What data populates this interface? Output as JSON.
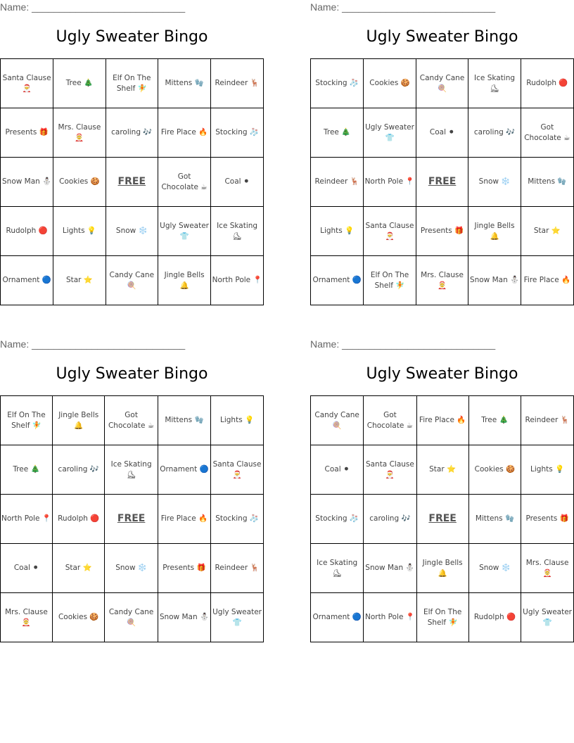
{
  "cards": [
    {
      "name_label": "Name: ____________________________",
      "title": "Ugly Sweater Bingo",
      "rows": [
        [
          "Santa Clause 🎅",
          "Tree 🎄",
          "Elf On The Shelf 🧚",
          "Mittens 🧤",
          "Reindeer 🦌"
        ],
        [
          "Presents 🎁",
          "Mrs. Clause 🤶",
          "caroling 🎶",
          "Fire Place 🔥",
          "Stocking 🧦"
        ],
        [
          "Snow Man ⛄",
          "Cookies 🍪",
          "FREE",
          "Got Chocolate ☕",
          "Coal ⚫"
        ],
        [
          "Rudolph 🔴",
          "Lights 💡",
          "Snow ❄️",
          "Ugly Sweater 👕",
          "Ice Skating ⛸"
        ],
        [
          "Ornament 🔵",
          "Star ⭐",
          "Candy Cane 🍭",
          "Jingle Bells 🔔",
          "North Pole 📍"
        ]
      ]
    },
    {
      "name_label": "Name: ____________________________",
      "title": "Ugly Sweater Bingo",
      "rows": [
        [
          "Stocking 🧦",
          "Cookies 🍪",
          "Candy Cane 🍭",
          "Ice Skating ⛸",
          "Rudolph 🔴"
        ],
        [
          "Tree 🎄",
          "Ugly Sweater 👕",
          "Coal ⚫",
          "caroling 🎶",
          "Got Chocolate ☕"
        ],
        [
          "Reindeer 🦌",
          "North Pole 📍",
          "FREE",
          "Snow ❄️",
          "Mittens 🧤"
        ],
        [
          "Lights 💡",
          "Santa Clause 🎅",
          "Presents 🎁",
          "Jingle Bells 🔔",
          "Star ⭐"
        ],
        [
          "Ornament 🔵",
          "Elf On The Shelf 🧚",
          "Mrs. Clause 🤶",
          "Snow Man ⛄",
          "Fire Place 🔥"
        ]
      ]
    },
    {
      "name_label": "Name: ____________________________",
      "title": "Ugly Sweater Bingo",
      "rows": [
        [
          "Elf On The Shelf 🧚",
          "Jingle Bells 🔔",
          "Got Chocolate ☕",
          "Mittens 🧤",
          "Lights 💡"
        ],
        [
          "Tree 🎄",
          "caroling 🎶",
          "Ice Skating ⛸",
          "Ornament 🔵",
          "Santa Clause 🎅"
        ],
        [
          "North Pole 📍",
          "Rudolph 🔴",
          "FREE",
          "Fire Place 🔥",
          "Stocking 🧦"
        ],
        [
          "Coal ⚫",
          "Star ⭐",
          "Snow ❄️",
          "Presents 🎁",
          "Reindeer 🦌"
        ],
        [
          "Mrs. Clause 🤶",
          "Cookies 🍪",
          "Candy Cane 🍭",
          "Snow Man ⛄",
          "Ugly Sweater 👕"
        ]
      ]
    },
    {
      "name_label": "Name: ____________________________",
      "title": "Ugly Sweater Bingo",
      "rows": [
        [
          "Candy Cane 🍭",
          "Got Chocolate ☕",
          "Fire Place 🔥",
          "Tree 🎄",
          "Reindeer 🦌"
        ],
        [
          "Coal ⚫",
          "Santa Clause 🎅",
          "Star ⭐",
          "Cookies 🍪",
          "Lights 💡"
        ],
        [
          "Stocking 🧦",
          "caroling 🎶",
          "FREE",
          "Mittens 🧤",
          "Presents 🎁"
        ],
        [
          "Ice Skating ⛸",
          "Snow Man ⛄",
          "Jingle Bells 🔔",
          "Snow ❄️",
          "Mrs. Clause 🤶"
        ],
        [
          "Ornament 🔵",
          "North Pole 📍",
          "Elf On The Shelf 🧚",
          "Rudolph 🔴",
          "Ugly Sweater 👕"
        ]
      ]
    }
  ]
}
